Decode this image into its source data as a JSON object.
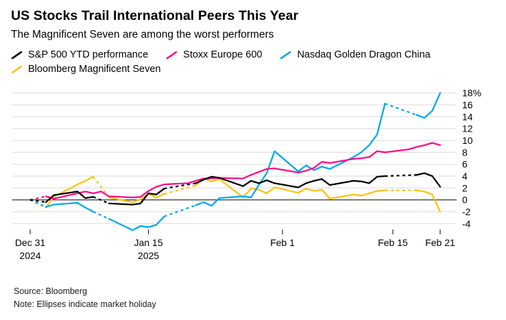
{
  "chart_data": {
    "type": "line",
    "title": "US Stocks Trail International Peers This Year",
    "subtitle": "The Magnificent Seven are among the worst performers",
    "legend_position": "top",
    "grid": "horizontal",
    "x_unit": "days_since_dec_31_2024",
    "x_max": 52,
    "ylim": [
      -5,
      19
    ],
    "y_ticks": [
      {
        "v": 18,
        "label": "18%"
      },
      {
        "v": 16,
        "label": "16"
      },
      {
        "v": 14,
        "label": "14"
      },
      {
        "v": 12,
        "label": "12"
      },
      {
        "v": 10,
        "label": "10"
      },
      {
        "v": 8,
        "label": "8"
      },
      {
        "v": 6,
        "label": "6"
      },
      {
        "v": 4,
        "label": "4"
      },
      {
        "v": 2,
        "label": "2"
      },
      {
        "v": 0,
        "label": "0"
      },
      {
        "v": -2,
        "label": "-2"
      },
      {
        "v": -4,
        "label": "-4"
      }
    ],
    "x_ticks": [
      {
        "d": 0,
        "l1": "Dec 31",
        "l2": "2024"
      },
      {
        "d": 15,
        "l1": "Jan 15",
        "l2": "2025"
      },
      {
        "d": 32,
        "l1": "Feb 1"
      },
      {
        "d": 46,
        "l1": "Feb 15"
      },
      {
        "d": 52,
        "l1": "Feb 21"
      }
    ],
    "series": [
      {
        "name": "S&P 500 YTD performance",
        "color": "#000000",
        "dashed_gap_starts": [
          0,
          8,
          17,
          45
        ],
        "points": [
          [
            0,
            0
          ],
          [
            2,
            -0.4
          ],
          [
            3,
            0.8
          ],
          [
            6,
            1.4
          ],
          [
            7,
            0.3
          ],
          [
            8,
            0.5
          ],
          [
            10,
            -0.6
          ],
          [
            13,
            -0.8
          ],
          [
            14,
            -0.6
          ],
          [
            15,
            1.1
          ],
          [
            16,
            0.9
          ],
          [
            17,
            1.9
          ],
          [
            21,
            2.8
          ],
          [
            22,
            3.4
          ],
          [
            23,
            3.9
          ],
          [
            24,
            3.7
          ],
          [
            27,
            2.3
          ],
          [
            28,
            3.2
          ],
          [
            29,
            2.8
          ],
          [
            30,
            3.3
          ],
          [
            31,
            2.8
          ],
          [
            34,
            2.1
          ],
          [
            35,
            2.8
          ],
          [
            36,
            3.2
          ],
          [
            37,
            3.5
          ],
          [
            38,
            2.5
          ],
          [
            41,
            3.2
          ],
          [
            42,
            3.1
          ],
          [
            43,
            2.8
          ],
          [
            44,
            3.9
          ],
          [
            45,
            4.0
          ],
          [
            49,
            4.2
          ],
          [
            50,
            4.5
          ],
          [
            51,
            4.0
          ],
          [
            52,
            2.2
          ]
        ]
      },
      {
        "name": "Stoxx Europe 600",
        "color": "#ff0d8a",
        "dashed_gap_starts": [
          0
        ],
        "points": [
          [
            0,
            0
          ],
          [
            2,
            0.6
          ],
          [
            3,
            0.2
          ],
          [
            6,
            1.1
          ],
          [
            7,
            1.4
          ],
          [
            8,
            1.1
          ],
          [
            9,
            1.4
          ],
          [
            10,
            0.6
          ],
          [
            13,
            0.4
          ],
          [
            14,
            0.5
          ],
          [
            15,
            1.5
          ],
          [
            16,
            2.2
          ],
          [
            17,
            2.6
          ],
          [
            20,
            2.8
          ],
          [
            21,
            3.2
          ],
          [
            22,
            3.6
          ],
          [
            23,
            3.6
          ],
          [
            24,
            3.7
          ],
          [
            27,
            3.6
          ],
          [
            28,
            4.2
          ],
          [
            29,
            4.7
          ],
          [
            30,
            5.2
          ],
          [
            31,
            5.3
          ],
          [
            34,
            4.6
          ],
          [
            35,
            4.9
          ],
          [
            36,
            5.4
          ],
          [
            37,
            6.4
          ],
          [
            38,
            6.2
          ],
          [
            41,
            6.9
          ],
          [
            42,
            7.0
          ],
          [
            43,
            7.2
          ],
          [
            44,
            8.2
          ],
          [
            45,
            8.0
          ],
          [
            48,
            8.5
          ],
          [
            49,
            8.9
          ],
          [
            50,
            9.2
          ],
          [
            51,
            9.6
          ],
          [
            52,
            9.2
          ]
        ]
      },
      {
        "name": "Nasdaq Golden Dragon China",
        "color": "#00a8ec",
        "dashed_gap_starts": [
          0,
          8,
          17,
          45
        ],
        "points": [
          [
            0,
            0
          ],
          [
            2,
            -1.2
          ],
          [
            3,
            -0.8
          ],
          [
            6,
            -0.5
          ],
          [
            7,
            -1.3
          ],
          [
            8,
            -2.0
          ],
          [
            10,
            -3.2
          ],
          [
            13,
            -5.1
          ],
          [
            14,
            -4.4
          ],
          [
            15,
            -4.6
          ],
          [
            16,
            -4.2
          ],
          [
            17,
            -2.8
          ],
          [
            21,
            -0.9
          ],
          [
            22,
            -0.4
          ],
          [
            23,
            -1.0
          ],
          [
            24,
            0.3
          ],
          [
            27,
            0.6
          ],
          [
            28,
            0.4
          ],
          [
            29,
            2.5
          ],
          [
            30,
            4.5
          ],
          [
            31,
            8.2
          ],
          [
            34,
            4.8
          ],
          [
            35,
            5.8
          ],
          [
            36,
            5.0
          ],
          [
            37,
            5.6
          ],
          [
            38,
            5.2
          ],
          [
            41,
            7.2
          ],
          [
            42,
            8.0
          ],
          [
            43,
            9.2
          ],
          [
            44,
            11.0
          ],
          [
            45,
            16.2
          ],
          [
            49,
            14.3
          ],
          [
            50,
            13.8
          ],
          [
            51,
            15.0
          ],
          [
            52,
            18.0
          ]
        ]
      },
      {
        "name": "Bloomberg Magnificent Seven",
        "color": "#ffc20e",
        "dashed_gap_starts": [
          0,
          8,
          17,
          45
        ],
        "points": [
          [
            0,
            0
          ],
          [
            2,
            -1.3
          ],
          [
            3,
            0.5
          ],
          [
            6,
            2.6
          ],
          [
            7,
            3.2
          ],
          [
            8,
            3.9
          ],
          [
            10,
            0.4
          ],
          [
            13,
            -0.4
          ],
          [
            14,
            0.1
          ],
          [
            15,
            1.0
          ],
          [
            16,
            0.4
          ],
          [
            17,
            1.0
          ],
          [
            21,
            2.4
          ],
          [
            22,
            3.6
          ],
          [
            23,
            3.1
          ],
          [
            24,
            3.5
          ],
          [
            27,
            0.4
          ],
          [
            28,
            1.9
          ],
          [
            29,
            1.7
          ],
          [
            30,
            1.1
          ],
          [
            31,
            2.1
          ],
          [
            34,
            1.2
          ],
          [
            35,
            1.9
          ],
          [
            36,
            1.5
          ],
          [
            37,
            1.7
          ],
          [
            38,
            0.2
          ],
          [
            41,
            0.9
          ],
          [
            42,
            0.7
          ],
          [
            43,
            1.1
          ],
          [
            44,
            1.5
          ],
          [
            45,
            1.6
          ],
          [
            49,
            1.6
          ],
          [
            50,
            1.4
          ],
          [
            51,
            0.9
          ],
          [
            52,
            -2.0
          ]
        ]
      }
    ]
  },
  "footer": {
    "source": "Source: Bloomberg",
    "note": "Note: Ellipses indicate market holiday"
  }
}
